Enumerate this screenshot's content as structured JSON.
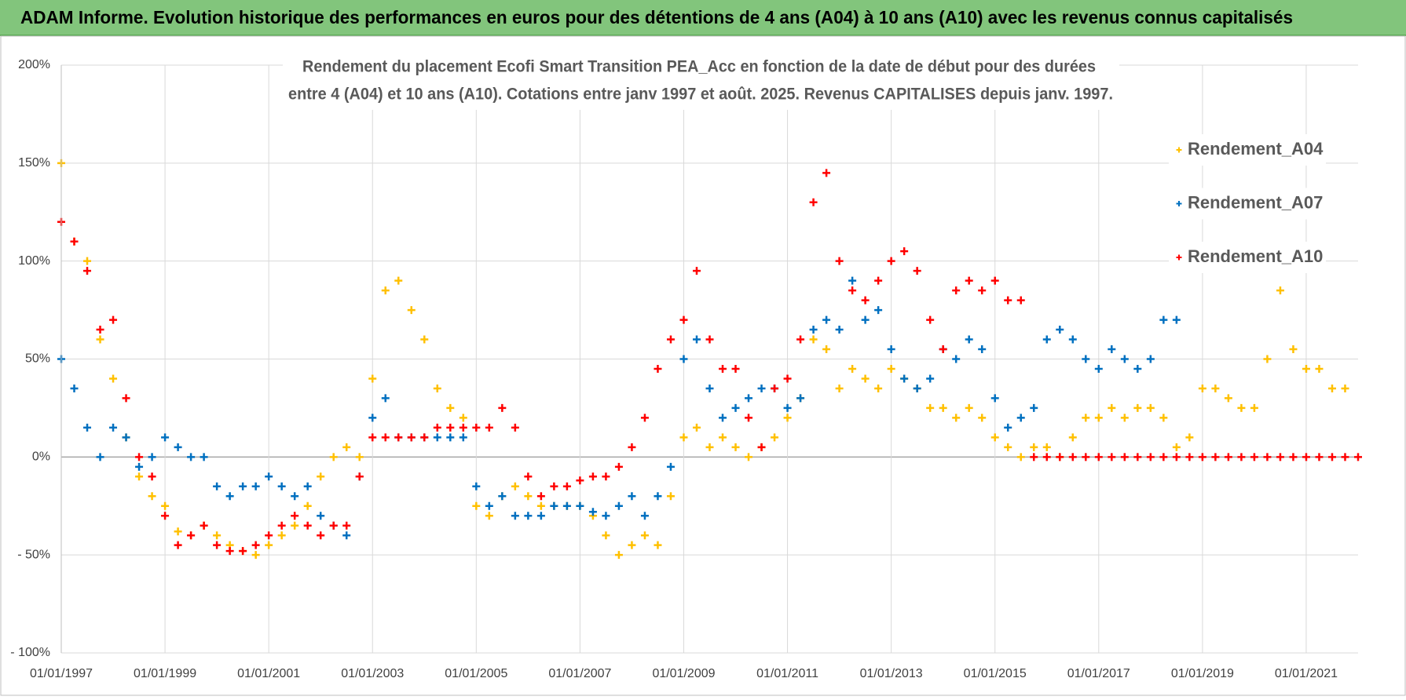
{
  "chart_data": {
    "type": "scatter",
    "title": "ADAM Informe. Evolution historique des performances en euros pour des détentions de 4 ans (A04) à 10 ans (A10) avec les revenus connus capitalisés",
    "subtitle": [
      "Rendement du placement Ecofi Smart Transition PEA_Acc en fonction de la date de début pour des durées",
      "entre 4 (A04) et 10 ans (A10).  Cotations entre janv 1997 et août. 2025. Revenus CAPITALISES depuis janv. 1997."
    ],
    "grid": true,
    "legend": "right",
    "xlim": [
      1997,
      2022
    ],
    "ylim": [
      -100,
      200
    ],
    "xticks": [
      {
        "value": 1997,
        "label": "01/01/1997"
      },
      {
        "value": 1999,
        "label": "01/01/1999"
      },
      {
        "value": 2001,
        "label": "01/01/2001"
      },
      {
        "value": 2003,
        "label": "01/01/2003"
      },
      {
        "value": 2005,
        "label": "01/01/2005"
      },
      {
        "value": 2007,
        "label": "01/01/2007"
      },
      {
        "value": 2009,
        "label": "01/01/2009"
      },
      {
        "value": 2011,
        "label": "01/01/2011"
      },
      {
        "value": 2013,
        "label": "01/01/2013"
      },
      {
        "value": 2015,
        "label": "01/01/2015"
      },
      {
        "value": 2017,
        "label": "01/01/2017"
      },
      {
        "value": 2019,
        "label": "01/01/2019"
      },
      {
        "value": 2021,
        "label": "01/01/2021"
      }
    ],
    "yticks": [
      {
        "value": 200,
        "label": "200%"
      },
      {
        "value": 150,
        "label": "150%"
      },
      {
        "value": 100,
        "label": "100%"
      },
      {
        "value": 50,
        "label": "50%"
      },
      {
        "value": 0,
        "label": "0%"
      },
      {
        "value": -50,
        "label": "- 50%"
      },
      {
        "value": -100,
        "label": "- 100%"
      }
    ],
    "x": [
      1997,
      1997.25,
      1997.5,
      1997.75,
      1998,
      1998.25,
      1998.5,
      1998.75,
      1999,
      1999.25,
      1999.5,
      1999.75,
      2000,
      2000.25,
      2000.5,
      2000.75,
      2001,
      2001.25,
      2001.5,
      2001.75,
      2002,
      2002.25,
      2002.5,
      2002.75,
      2003,
      2003.25,
      2003.5,
      2003.75,
      2004,
      2004.25,
      2004.5,
      2004.75,
      2005,
      2005.25,
      2005.5,
      2005.75,
      2006,
      2006.25,
      2006.5,
      2006.75,
      2007,
      2007.25,
      2007.5,
      2007.75,
      2008,
      2008.25,
      2008.5,
      2008.75,
      2009,
      2009.25,
      2009.5,
      2009.75,
      2010,
      2010.25,
      2010.5,
      2010.75,
      2011,
      2011.25,
      2011.5,
      2011.75,
      2012,
      2012.25,
      2012.5,
      2012.75,
      2013,
      2013.25,
      2013.5,
      2013.75,
      2014,
      2014.25,
      2014.5,
      2014.75,
      2015,
      2015.25,
      2015.5,
      2015.75,
      2016,
      2016.25,
      2016.5,
      2016.75,
      2017,
      2017.25,
      2017.5,
      2017.75,
      2018,
      2018.25,
      2018.5,
      2018.75,
      2019,
      2019.25,
      2019.5,
      2019.75,
      2020,
      2020.25,
      2020.5,
      2020.75,
      2021,
      2021.25,
      2021.5,
      2021.75,
      2022
    ],
    "series": [
      {
        "name": "Rendement_A04",
        "color": "#ffc000",
        "values": [
          150,
          110,
          100,
          60,
          40,
          10,
          -10,
          -20,
          -25,
          -38,
          -40,
          -35,
          -40,
          -45,
          -48,
          -50,
          -45,
          -40,
          -35,
          -25,
          -10,
          0,
          5,
          0,
          40,
          85,
          90,
          75,
          60,
          35,
          25,
          20,
          -25,
          -30,
          -20,
          -15,
          -20,
          -25,
          -25,
          -25,
          -25,
          -30,
          -40,
          -50,
          -45,
          -40,
          -45,
          -20,
          10,
          15,
          5,
          10,
          5,
          0,
          5,
          10,
          20,
          30,
          60,
          55,
          35,
          45,
          40,
          35,
          45,
          40,
          35,
          25,
          25,
          20,
          25,
          20,
          10,
          5,
          0,
          5,
          5,
          0,
          10,
          20,
          20,
          25,
          20,
          25,
          25,
          20,
          5,
          10,
          35,
          35,
          30,
          25,
          25,
          50,
          85,
          55,
          45,
          45,
          35,
          35,
          null
        ]
      },
      {
        "name": "Rendement_A07",
        "color": "#0070c0",
        "values": [
          50,
          35,
          15,
          0,
          15,
          10,
          -5,
          0,
          10,
          5,
          0,
          0,
          -15,
          -20,
          -15,
          -15,
          -10,
          -15,
          -20,
          -15,
          -30,
          -35,
          -40,
          -10,
          20,
          30,
          10,
          10,
          10,
          10,
          10,
          10,
          -15,
          -25,
          -20,
          -30,
          -30,
          -30,
          -25,
          -25,
          -25,
          -28,
          -30,
          -25,
          -20,
          -30,
          -20,
          -5,
          50,
          60,
          35,
          20,
          25,
          30,
          35,
          35,
          25,
          30,
          65,
          70,
          65,
          90,
          70,
          75,
          55,
          40,
          35,
          40,
          55,
          50,
          60,
          55,
          30,
          15,
          20,
          25,
          60,
          65,
          60,
          50,
          45,
          55,
          50,
          45,
          50,
          70,
          70,
          null,
          null,
          null,
          null,
          null,
          null,
          null,
          null,
          null,
          null,
          null,
          null,
          null,
          null
        ]
      },
      {
        "name": "Rendement_A10",
        "color": "#ff0000",
        "values": [
          120,
          110,
          95,
          65,
          70,
          30,
          0,
          -10,
          -30,
          -45,
          -40,
          -35,
          -45,
          -48,
          -48,
          -45,
          -40,
          -35,
          -30,
          -35,
          -40,
          -35,
          -35,
          -10,
          10,
          10,
          10,
          10,
          10,
          15,
          15,
          15,
          15,
          15,
          25,
          15,
          -10,
          -20,
          -15,
          -15,
          -12,
          -10,
          -10,
          -5,
          5,
          20,
          45,
          60,
          70,
          95,
          60,
          45,
          45,
          20,
          5,
          35,
          40,
          60,
          130,
          145,
          100,
          85,
          80,
          90,
          100,
          105,
          95,
          70,
          55,
          85,
          90,
          85,
          90,
          80,
          80,
          0,
          0,
          0,
          0,
          0,
          0,
          0,
          0,
          0,
          0,
          0,
          0,
          0,
          0,
          0,
          0,
          0,
          0,
          0,
          0,
          0,
          0,
          0,
          0,
          0,
          0
        ]
      }
    ]
  }
}
